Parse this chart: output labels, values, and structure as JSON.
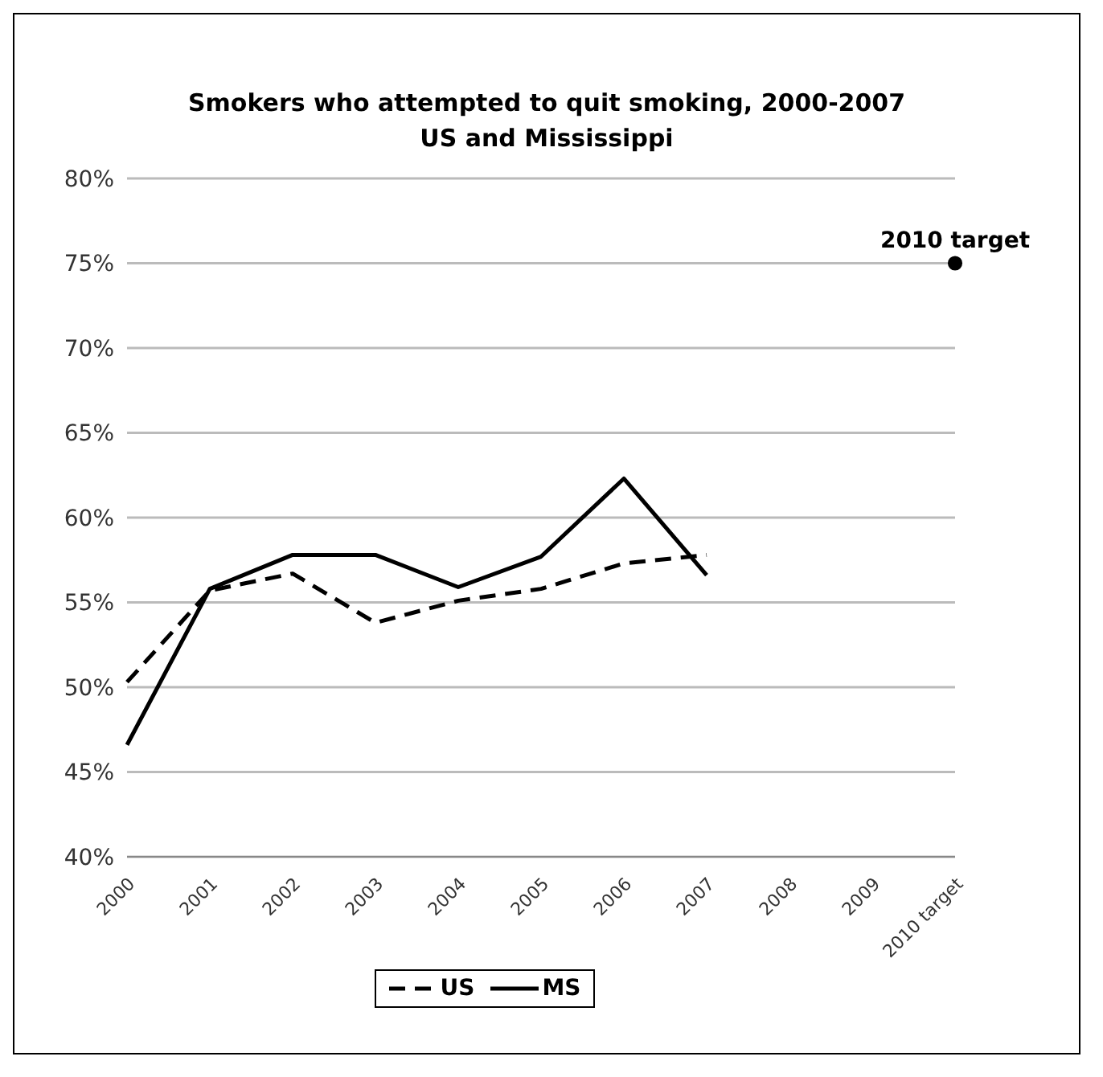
{
  "chart_data": {
    "type": "line",
    "title": "Smokers who attempted to quit smoking, 2000-2007",
    "subtitle": "US and Mississippi",
    "categories": [
      "2000",
      "2001",
      "2002",
      "2003",
      "2004",
      "2005",
      "2006",
      "2007",
      "2008",
      "2009",
      "2010 target"
    ],
    "series": [
      {
        "name": "US",
        "color": "#000000",
        "line_style": "dashed",
        "values": [
          50.3,
          55.7,
          56.7,
          53.8,
          55.1,
          55.8,
          57.3,
          57.8,
          null,
          null,
          null
        ]
      },
      {
        "name": "MS",
        "color": "#000000",
        "line_style": "solid",
        "values": [
          46.6,
          55.8,
          57.8,
          57.8,
          55.9,
          57.7,
          62.3,
          56.6,
          null,
          null,
          null
        ]
      },
      {
        "type": "scatter",
        "color": "#000000",
        "marker": "circle",
        "values": [
          null,
          null,
          null,
          null,
          null,
          null,
          null,
          null,
          null,
          null,
          75
        ]
      }
    ],
    "ylim": [
      40,
      80
    ],
    "yticks": [
      {
        "value": 40,
        "label": "40%"
      },
      {
        "value": 45,
        "label": "45%"
      },
      {
        "value": 50,
        "label": "50%"
      },
      {
        "value": 55,
        "label": "55%"
      },
      {
        "value": 60,
        "label": "60%"
      },
      {
        "value": 65,
        "label": "65%"
      },
      {
        "value": 70,
        "label": "70%"
      },
      {
        "value": 75,
        "label": "75%"
      },
      {
        "value": 80,
        "label": "80%"
      }
    ],
    "grid": "y",
    "legend": "bottom",
    "marker": "none",
    "annotations": [
      {
        "text": "2010 target",
        "x": "2010 target",
        "y": 75
      }
    ]
  }
}
